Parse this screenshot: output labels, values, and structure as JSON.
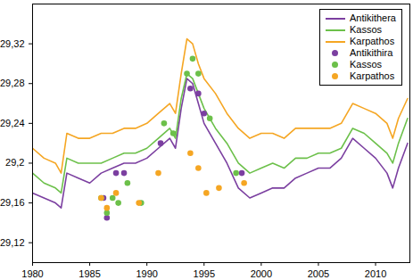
{
  "chart_data": {
    "type": "line",
    "x": [
      1980,
      1981,
      1982,
      1982.5,
      1983,
      1984,
      1985,
      1986,
      1987,
      1988,
      1989,
      1990,
      1991,
      1992,
      1992.5,
      1993,
      1993.5,
      1994,
      1994.5,
      1995,
      1996,
      1997,
      1998,
      1999,
      2000,
      2001,
      2002,
      2003,
      2004,
      2005,
      2006,
      2007,
      2008,
      2009,
      2010,
      2011,
      2011.5,
      2012,
      2012.8
    ],
    "series": [
      {
        "name": "Antikithera",
        "type": "line",
        "color": "#7b3fa0",
        "values": [
          29.17,
          29.165,
          29.16,
          29.155,
          29.19,
          29.185,
          29.18,
          29.19,
          29.195,
          29.2,
          29.2,
          29.205,
          29.215,
          29.225,
          29.215,
          29.255,
          29.285,
          29.28,
          29.26,
          29.24,
          29.22,
          29.2,
          29.175,
          29.165,
          29.17,
          29.175,
          29.175,
          29.185,
          29.19,
          29.195,
          29.195,
          29.205,
          29.225,
          29.215,
          29.205,
          29.19,
          29.175,
          29.195,
          29.22
        ]
      },
      {
        "name": "Kassos",
        "type": "line",
        "color": "#6cc04a",
        "values": [
          29.19,
          29.18,
          29.175,
          29.17,
          29.205,
          29.2,
          29.2,
          29.2,
          29.205,
          29.21,
          29.21,
          29.215,
          29.225,
          29.235,
          29.225,
          29.265,
          29.29,
          29.285,
          29.27,
          29.255,
          29.235,
          29.22,
          29.2,
          29.19,
          29.195,
          29.2,
          29.195,
          29.205,
          29.205,
          29.21,
          29.21,
          29.215,
          29.235,
          29.23,
          29.22,
          29.21,
          29.2,
          29.22,
          29.245
        ]
      },
      {
        "name": "Karpathos",
        "type": "line",
        "color": "#f5a623",
        "values": [
          29.215,
          29.205,
          29.2,
          29.19,
          29.23,
          29.225,
          29.225,
          29.23,
          29.23,
          29.235,
          29.235,
          29.24,
          29.25,
          29.26,
          29.25,
          29.29,
          29.325,
          29.32,
          29.3,
          29.285,
          29.27,
          29.25,
          29.235,
          29.225,
          29.23,
          29.23,
          29.225,
          29.235,
          29.235,
          29.235,
          29.235,
          29.24,
          29.26,
          29.255,
          29.25,
          29.24,
          29.225,
          29.245,
          29.265
        ]
      },
      {
        "name": "Antikithira",
        "type": "scatter",
        "marker": "circle",
        "color": "#7b3fa0",
        "x": [
          1986.2,
          1986.5,
          1987.3,
          1988,
          1991.2,
          1993.8,
          1994.5,
          1995,
          1998.3
        ],
        "values": [
          29.165,
          29.145,
          29.19,
          29.19,
          29.22,
          29.275,
          29.27,
          29.25,
          29.19
        ]
      },
      {
        "name": "Kassos",
        "type": "scatter",
        "marker": "circle",
        "color": "#6cc04a",
        "x": [
          1986,
          1986.5,
          1987,
          1987.5,
          1988.3,
          1989.5,
          1991.5,
          1992.3,
          1993.5,
          1994,
          1994.5,
          1995.5,
          1997.8
        ],
        "values": [
          29.165,
          29.15,
          29.165,
          29.16,
          29.18,
          29.16,
          29.24,
          29.23,
          29.29,
          29.305,
          29.29,
          29.245,
          29.19
        ]
      },
      {
        "name": "Karpathos",
        "type": "scatter",
        "marker": "circle",
        "color": "#f5a623",
        "x": [
          1986,
          1986.5,
          1987.3,
          1989.3,
          1991,
          1993.8,
          1994.5,
          1995.2,
          1996.3,
          1998.5
        ],
        "values": [
          29.165,
          29.155,
          29.17,
          29.16,
          29.19,
          29.21,
          29.195,
          29.17,
          29.175,
          29.18
        ]
      }
    ],
    "xlim": [
      1980,
      2013
    ],
    "xticks": [
      1980,
      1985,
      1990,
      1995,
      2000,
      2005,
      2010
    ],
    "ylim": [
      29.1,
      29.36
    ],
    "yticks": [
      {
        "value": 29.12,
        "label": "29,12"
      },
      {
        "value": 29.16,
        "label": "29,16"
      },
      {
        "value": 29.2,
        "label": "29,2"
      },
      {
        "value": 29.24,
        "label": "29,24"
      },
      {
        "value": 29.28,
        "label": "29,28"
      },
      {
        "value": 29.32,
        "label": "29,32"
      }
    ],
    "legend": "top-right",
    "grid": false
  }
}
